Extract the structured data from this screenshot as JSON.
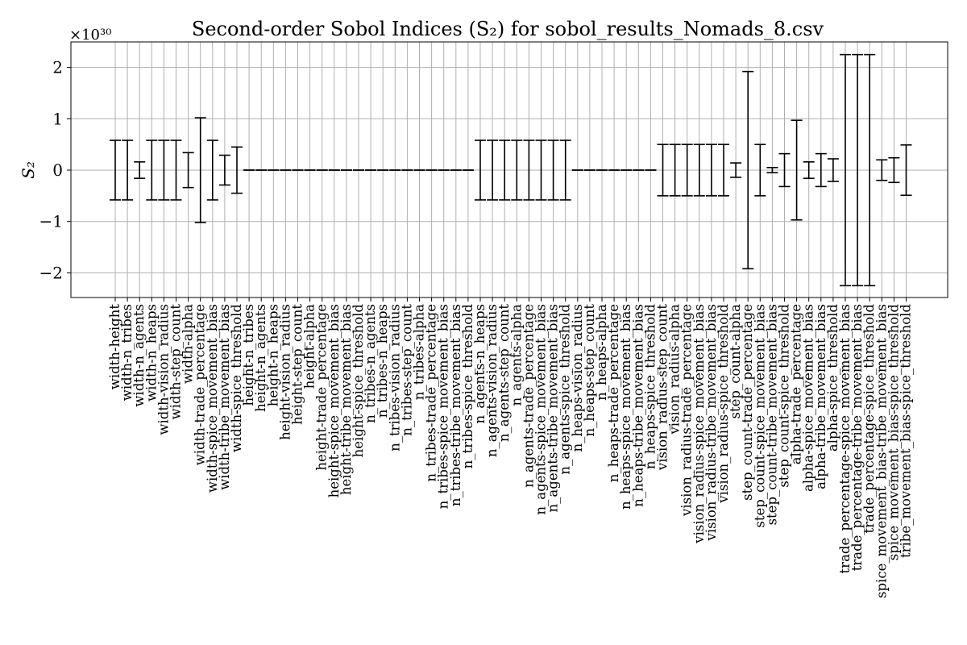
{
  "chart_data": {
    "type": "errorbar",
    "title": "Second-order Sobol Indices (S₂) for sobol_results_Nomads_8.csv",
    "ylabel": "S₂",
    "y_multiplier_label": "×10³⁰",
    "yticks": [
      -2,
      -1,
      0,
      1,
      2
    ],
    "ytick_labels": [
      "−2",
      "−1",
      "0",
      "1",
      "2"
    ],
    "ylim": [
      -2.5,
      2.5
    ],
    "grid": true,
    "categories": [
      "width-height",
      "width-n_tribes",
      "width-n_agents",
      "width-n_heaps",
      "width-vision_radius",
      "width-step_count",
      "width-alpha",
      "width-trade_percentage",
      "width-spice_movement_bias",
      "width-tribe_movement_bias",
      "width-spice_threshold",
      "height-n_tribes",
      "height-n_agents",
      "height-n_heaps",
      "height-vision_radius",
      "height-step_count",
      "height-alpha",
      "height-trade_percentage",
      "height-spice_movement_bias",
      "height-tribe_movement_bias",
      "height-spice_threshold",
      "n_tribes-n_agents",
      "n_tribes-n_heaps",
      "n_tribes-vision_radius",
      "n_tribes-step_count",
      "n_tribes-alpha",
      "n_tribes-trade_percentage",
      "n_tribes-spice_movement_bias",
      "n_tribes-tribe_movement_bias",
      "n_tribes-spice_threshold",
      "n_agents-n_heaps",
      "n_agents-vision_radius",
      "n_agents-step_count",
      "n_agents-alpha",
      "n_agents-trade_percentage",
      "n_agents-spice_movement_bias",
      "n_agents-tribe_movement_bias",
      "n_agents-spice_threshold",
      "n_heaps-vision_radius",
      "n_heaps-step_count",
      "n_heaps-alpha",
      "n_heaps-trade_percentage",
      "n_heaps-spice_movement_bias",
      "n_heaps-tribe_movement_bias",
      "n_heaps-spice_threshold",
      "vision_radius-step_count",
      "vision_radius-alpha",
      "vision_radius-trade_percentage",
      "vision_radius-spice_movement_bias",
      "vision_radius-tribe_movement_bias",
      "vision_radius-spice_threshold",
      "step_count-alpha",
      "step_count-trade_percentage",
      "step_count-spice_movement_bias",
      "step_count-tribe_movement_bias",
      "step_count-spice_threshold",
      "alpha-trade_percentage",
      "alpha-spice_movement_bias",
      "alpha-tribe_movement_bias",
      "alpha-spice_threshold",
      "trade_percentage-spice_movement_bias",
      "trade_percentage-tribe_movement_bias",
      "trade_percentage-spice_threshold",
      "spice_movement_bias-tribe_movement_bias",
      "spice_movement_bias-spice_threshold",
      "tribe_movement_bias-spice_threshold"
    ],
    "values": [
      0,
      0,
      0,
      0,
      0,
      0,
      0,
      0,
      0,
      0,
      0,
      0,
      0,
      0,
      0,
      0,
      0,
      0,
      0,
      0,
      0,
      0,
      0,
      0,
      0,
      0,
      0,
      0,
      0,
      0,
      0,
      0,
      0,
      0,
      0,
      0,
      0,
      0,
      0,
      0,
      0,
      0,
      0,
      0,
      0,
      0,
      0,
      0,
      0,
      0,
      0,
      0,
      0,
      0,
      0,
      0,
      0,
      0,
      0,
      0,
      0,
      0,
      0,
      0,
      0,
      0
    ],
    "errors": [
      0.58,
      0.58,
      0.16,
      0.58,
      0.58,
      0.58,
      0.34,
      1.02,
      0.58,
      0.29,
      0.45,
      0,
      0,
      0,
      0,
      0,
      0,
      0,
      0,
      0,
      0,
      0,
      0,
      0,
      0,
      0,
      0,
      0,
      0,
      0,
      0.58,
      0.58,
      0.58,
      0.58,
      0.58,
      0.58,
      0.58,
      0.58,
      0,
      0,
      0,
      0,
      0,
      0,
      0,
      0.5,
      0.5,
      0.5,
      0.5,
      0.5,
      0.5,
      0.14,
      1.92,
      0.5,
      0.05,
      0.32,
      0.97,
      0.16,
      0.32,
      0.22,
      2.25,
      2.25,
      2.25,
      0.2,
      0.24,
      0.49
    ]
  }
}
